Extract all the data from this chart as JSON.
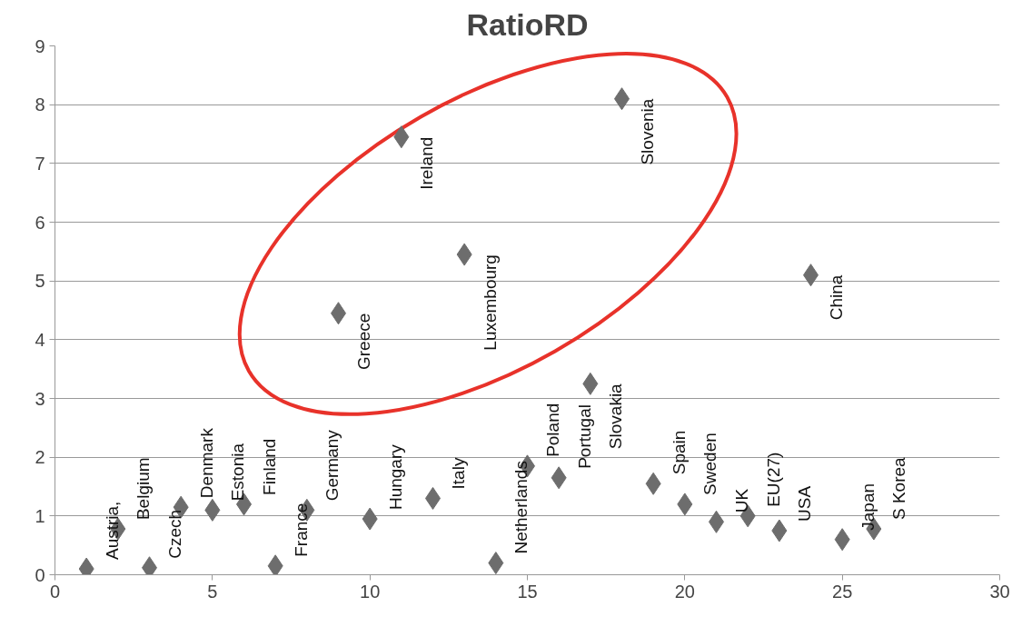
{
  "chart_data": {
    "type": "scatter",
    "title": "RatioRD",
    "marker": "diamond",
    "grid": "y",
    "xlim": [
      0,
      30
    ],
    "xticks": [
      0,
      5,
      10,
      15,
      20,
      25,
      30
    ],
    "ylim": [
      0,
      9
    ],
    "yticks": [
      0,
      1,
      2,
      3,
      4,
      5,
      6,
      7,
      8,
      9
    ],
    "series": [
      {
        "color": "#6d6d6d",
        "x": [
          1,
          2,
          3,
          4,
          5,
          6,
          7,
          8,
          9,
          10,
          11,
          12,
          13,
          14,
          15,
          16,
          17,
          18,
          19,
          20,
          21,
          22,
          23,
          24,
          25,
          26
        ],
        "values": [
          0.1,
          0.78,
          0.12,
          1.15,
          1.1,
          1.2,
          0.15,
          1.1,
          4.45,
          0.95,
          7.45,
          1.3,
          5.45,
          0.2,
          1.85,
          1.65,
          3.25,
          8.1,
          1.55,
          1.2,
          0.9,
          1.0,
          0.75,
          5.1,
          0.6,
          0.78
        ]
      }
    ],
    "annotations": [
      {
        "text": "Austria,",
        "x": 1,
        "y": 0.1
      },
      {
        "text": "Belgium",
        "x": 2,
        "y": 0.78
      },
      {
        "text": "Czech",
        "x": 3,
        "y": 0.12
      },
      {
        "text": "Denmark",
        "x": 4,
        "y": 1.15
      },
      {
        "text": "Estonia",
        "x": 5,
        "y": 1.1
      },
      {
        "text": "Finland",
        "x": 6,
        "y": 1.2
      },
      {
        "text": "France",
        "x": 7,
        "y": 0.15
      },
      {
        "text": "Germany",
        "x": 8,
        "y": 1.1
      },
      {
        "text": "Greece",
        "x": 9,
        "y": 4.45
      },
      {
        "text": "Hungary",
        "x": 10,
        "y": 0.95
      },
      {
        "text": "Ireland",
        "x": 11,
        "y": 7.45
      },
      {
        "text": "Italy",
        "x": 12,
        "y": 1.3
      },
      {
        "text": "Luxembourg",
        "x": 13,
        "y": 5.45
      },
      {
        "text": "Netherlands",
        "x": 14,
        "y": 0.2
      },
      {
        "text": "Poland",
        "x": 15,
        "y": 1.85
      },
      {
        "text": "Portugal",
        "x": 16,
        "y": 1.65
      },
      {
        "text": "Slovakia",
        "x": 17,
        "y": 3.25
      },
      {
        "text": "Slovenia",
        "x": 18,
        "y": 8.1
      },
      {
        "text": "Spain",
        "x": 19,
        "y": 1.55
      },
      {
        "text": "Sweden",
        "x": 20,
        "y": 1.2
      },
      {
        "text": "UK",
        "x": 21,
        "y": 0.9
      },
      {
        "text": "EU(27)",
        "x": 22,
        "y": 1.0
      },
      {
        "text": "USA",
        "x": 23,
        "y": 0.75
      },
      {
        "text": "China",
        "x": 24,
        "y": 5.1
      },
      {
        "text": "Japan",
        "x": 25,
        "y": 0.6
      },
      {
        "text": "S Korea",
        "x": 26,
        "y": 0.78
      }
    ]
  }
}
